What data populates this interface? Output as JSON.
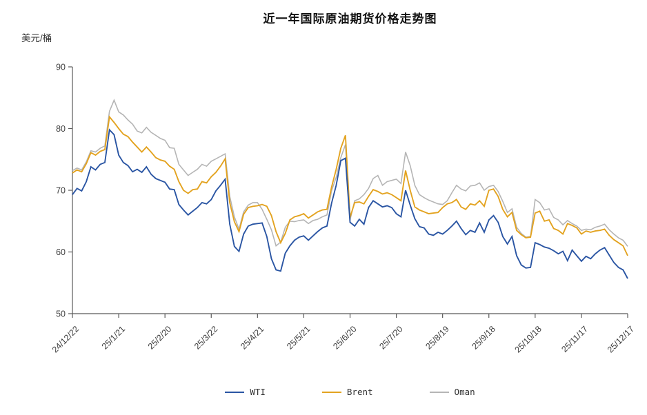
{
  "chart_data": {
    "type": "line",
    "title": "近一年国际原油期货价格走势图",
    "ylabel": "美元/桶",
    "ylim": [
      50,
      90
    ],
    "yticks": [
      50,
      60,
      70,
      80,
      90
    ],
    "grid": false,
    "legend_position": "bottom-center",
    "axis_color": "#595959",
    "tick_text_color": "#404040",
    "categories": [
      "24/12/22",
      "25/1/21",
      "25/2/20",
      "25/3/22",
      "25/4/21",
      "25/5/21",
      "25/6/20",
      "25/7/20",
      "25/8/19",
      "25/9/18",
      "25/10/18",
      "25/11/17",
      "25/12/17"
    ],
    "series": [
      {
        "name": "Oman",
        "color": "#b5b5b5",
        "values": [
          73.2,
          73.6,
          73.3,
          74.6,
          76.4,
          76.2,
          76.8,
          77.2,
          82.8,
          84.6,
          82.7,
          82.2,
          81.4,
          80.7,
          79.6,
          79.3,
          80.2,
          79.4,
          78.9,
          78.4,
          78.1,
          76.9,
          76.8,
          74.2,
          73.3,
          72.4,
          72.9,
          73.4,
          74.2,
          73.9,
          74.7,
          75.1,
          75.5,
          75.9,
          69.0,
          65.7,
          63.7,
          66.5,
          67.6,
          68.0,
          68.0,
          66.9,
          65.3,
          63.6,
          61.0,
          61.6,
          64.0,
          65.0,
          64.9,
          65.1,
          65.2,
          64.6,
          65.1,
          65.3,
          65.7,
          66.0,
          69.9,
          72.1,
          75.3,
          77.4,
          65.2,
          68.3,
          68.6,
          69.3,
          70.3,
          71.9,
          72.4,
          70.8,
          71.4,
          71.6,
          71.8,
          71.1,
          76.2,
          74.0,
          70.8,
          69.3,
          68.8,
          68.4,
          68.1,
          67.8,
          67.7,
          68.3,
          69.6,
          70.8,
          70.2,
          69.9,
          70.7,
          70.8,
          71.2,
          70.0,
          70.6,
          70.8,
          69.8,
          68.2,
          66.4,
          67.0,
          64.0,
          63.0,
          62.4,
          62.5,
          68.5,
          68.0,
          66.8,
          67.0,
          65.6,
          65.2,
          64.4,
          65.1,
          64.6,
          64.2,
          63.5,
          63.7,
          63.6,
          64.0,
          64.2,
          64.5,
          63.6,
          62.9,
          62.3,
          61.9,
          60.9
        ]
      },
      {
        "name": "Brent",
        "color": "#e3a320",
        "values": [
          72.8,
          73.3,
          73.0,
          74.3,
          76.1,
          75.7,
          76.3,
          76.6,
          81.9,
          81.0,
          80.0,
          79.1,
          78.7,
          77.8,
          77.0,
          76.2,
          77.0,
          76.2,
          75.3,
          74.9,
          74.7,
          73.9,
          73.4,
          71.4,
          70.0,
          69.5,
          70.1,
          70.2,
          71.4,
          71.2,
          72.2,
          72.9,
          73.9,
          75.1,
          68.0,
          64.9,
          63.3,
          66.1,
          67.2,
          67.4,
          67.5,
          67.7,
          67.4,
          65.9,
          63.3,
          61.5,
          63.0,
          65.2,
          65.7,
          65.9,
          66.2,
          65.5,
          66.0,
          66.5,
          66.8,
          66.9,
          70.5,
          73.4,
          76.8,
          78.9,
          65.6,
          68.0,
          68.1,
          67.8,
          69.0,
          70.1,
          69.8,
          69.4,
          69.6,
          69.3,
          68.8,
          68.3,
          73.2,
          70.0,
          67.3,
          66.8,
          66.5,
          66.2,
          66.3,
          66.4,
          67.2,
          67.8,
          68.0,
          68.5,
          67.3,
          66.9,
          67.8,
          67.6,
          68.3,
          67.4,
          70.0,
          70.2,
          69.0,
          66.9,
          65.7,
          66.4,
          63.5,
          62.8,
          62.3,
          62.4,
          66.3,
          66.6,
          65.0,
          65.2,
          63.8,
          63.5,
          62.9,
          64.6,
          64.3,
          63.9,
          62.9,
          63.4,
          63.2,
          63.4,
          63.5,
          63.7,
          62.7,
          62.0,
          61.5,
          61.0,
          59.4
        ]
      },
      {
        "name": "WTI",
        "color": "#2a55a3",
        "values": [
          69.3,
          70.3,
          69.9,
          71.4,
          73.8,
          73.3,
          74.2,
          74.5,
          79.8,
          79.0,
          75.7,
          74.5,
          74.0,
          73.0,
          73.4,
          72.9,
          73.8,
          72.6,
          71.9,
          71.6,
          71.3,
          70.2,
          70.1,
          67.7,
          66.8,
          66.0,
          66.6,
          67.2,
          68.0,
          67.8,
          68.5,
          69.9,
          70.8,
          71.8,
          64.5,
          60.9,
          60.1,
          62.9,
          64.2,
          64.5,
          64.6,
          64.7,
          62.5,
          58.9,
          57.1,
          56.9,
          59.8,
          61.0,
          61.9,
          62.4,
          62.6,
          61.9,
          62.6,
          63.3,
          63.9,
          64.2,
          67.9,
          70.8,
          74.8,
          75.2,
          64.8,
          64.2,
          65.3,
          64.5,
          67.2,
          68.3,
          67.8,
          67.3,
          67.5,
          67.2,
          66.2,
          65.7,
          70.0,
          67.6,
          65.4,
          64.1,
          63.9,
          62.9,
          62.7,
          63.2,
          62.9,
          63.5,
          64.2,
          65.0,
          63.8,
          62.8,
          63.5,
          63.2,
          64.7,
          63.2,
          65.2,
          65.9,
          64.8,
          62.5,
          61.3,
          62.5,
          59.4,
          57.9,
          57.4,
          57.5,
          61.5,
          61.2,
          60.8,
          60.6,
          60.2,
          59.7,
          60.1,
          58.6,
          60.3,
          59.4,
          58.5,
          59.3,
          58.9,
          59.7,
          60.3,
          60.7,
          59.5,
          58.3,
          57.5,
          57.1,
          55.7
        ]
      }
    ],
    "legend": [
      "WTI",
      "Brent",
      "Oman"
    ]
  }
}
